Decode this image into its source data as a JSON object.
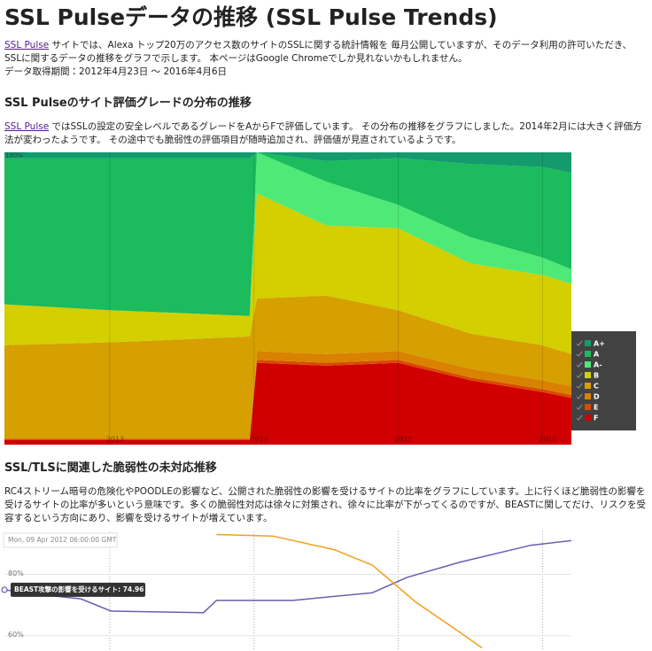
{
  "title": "SSL Pulseデータの推移 (SSL Pulse Trends)",
  "intro": {
    "link": "SSL Pulse",
    "text": "サイトでは、Alexa トップ20万のアクセス数のサイトのSSLに関する統計情報を 毎月公開していますが、そのデータ利用の許可いただき、SSLに関するデータの推移をグラフで示します。 本ページはGoogle Chromeでしか見れないかもしれません。",
    "period": "データ取得期間：2012年4月23日 〜 2016年4月6日"
  },
  "section1": {
    "heading": "SSL Pulseのサイト評価グレードの分布の推移",
    "link": "SSL Pulse",
    "text": "ではSSLの設定の安全レベルであるグレードをAからFで評価しています。 その分布の推移をグラフにしました。2014年2月には大きく評価方法が変わったようです。 その途中でも脆弱性の評価項目が随時追加され、評価値が見直されているようです。"
  },
  "chart1": {
    "type": "stacked-area",
    "x": [
      2012.27,
      2013.0,
      2013.5,
      2013.97,
      2014.02,
      2014.5,
      2015.0,
      2015.5,
      2016.0,
      2016.2
    ],
    "xlim": [
      2012.27,
      2016.2
    ],
    "xticks": [
      2013,
      2014,
      2015,
      2016
    ],
    "ylim": [
      0,
      100
    ],
    "yticks": [
      {
        "value": 100,
        "label": "100%"
      }
    ],
    "legend": "right",
    "series": [
      {
        "name": "A+",
        "color": "#139b6e",
        "values": [
          2,
          2,
          2,
          2,
          0,
          3,
          2,
          4,
          5,
          7
        ]
      },
      {
        "name": "A",
        "color": "#1bbb5e",
        "values": [
          50,
          52,
          53,
          54,
          0,
          7,
          16,
          25,
          31,
          33
        ]
      },
      {
        "name": "A-",
        "color": "#4fe977",
        "values": [
          0,
          0,
          0,
          0,
          14,
          15,
          8,
          9,
          6,
          5
        ]
      },
      {
        "name": "B",
        "color": "#d3cf00",
        "values": [
          14,
          11,
          9,
          7,
          36,
          24,
          28,
          24,
          24,
          24
        ]
      },
      {
        "name": "C",
        "color": "#d5a000",
        "values": [
          32,
          33,
          34,
          35,
          18,
          20,
          14,
          12,
          12,
          11
        ]
      },
      {
        "name": "D",
        "color": "#d98200",
        "values": [
          0,
          0,
          0,
          0,
          3,
          3,
          3,
          3,
          3,
          3
        ]
      },
      {
        "name": "E",
        "color": "#d94a00",
        "values": [
          0.5,
          0.5,
          0.5,
          0.5,
          1,
          1,
          1,
          1,
          1,
          1
        ]
      },
      {
        "name": "F",
        "color": "#d10000",
        "values": [
          1.5,
          1.5,
          1.5,
          1.5,
          28,
          27,
          28,
          22,
          18,
          16
        ]
      }
    ]
  },
  "section2": {
    "heading": "SSL/TLSに関連した脆弱性の未対応推移",
    "text": "RC4ストリーム暗号の危険化やPOODLEの影響など、公開された脆弱性の影響を受けるサイトの比率をグラフにしています。上に行くほど脆弱性の影響を受けるサイトの比率が多いという意味です。多くの脆弱性対応は徐々に対策され、徐々に比率が下がってくるのですが、BEASTに関してだけ、リスクを受容するという方向にあり、影響を受けるサイトが増えています。"
  },
  "chart2": {
    "type": "line",
    "xlim": [
      2012.27,
      2016.2
    ],
    "xticks": [
      2013,
      2014,
      2015,
      2016
    ],
    "ylim": [
      55,
      94
    ],
    "yticks": [
      {
        "value": 80,
        "label": "80%"
      },
      {
        "value": 60,
        "label": "60%"
      }
    ],
    "tooltip_date": "Mon, 09 Apr 2012 06:00:00 GMT",
    "tooltip_label": "BEAST攻撃の影響を受けるサイト: 74.96",
    "series": [
      {
        "color": "#6a5fb3",
        "x": [
          2012.27,
          2012.5,
          2012.8,
          2013.01,
          2013.65,
          2013.74,
          2014.27,
          2014.82,
          2015.06,
          2015.43,
          2015.92,
          2016.2
        ],
        "values": [
          74.96,
          73.5,
          72,
          68,
          67.5,
          71.5,
          71.5,
          74,
          79,
          84,
          89.5,
          91
        ]
      },
      {
        "color": "#f0a020",
        "x": [
          2013.74,
          2014.13,
          2014.56,
          2014.82,
          2015.12,
          2015.43,
          2015.58
        ],
        "values": [
          93,
          92.5,
          88,
          83,
          71,
          61,
          56
        ]
      }
    ]
  }
}
